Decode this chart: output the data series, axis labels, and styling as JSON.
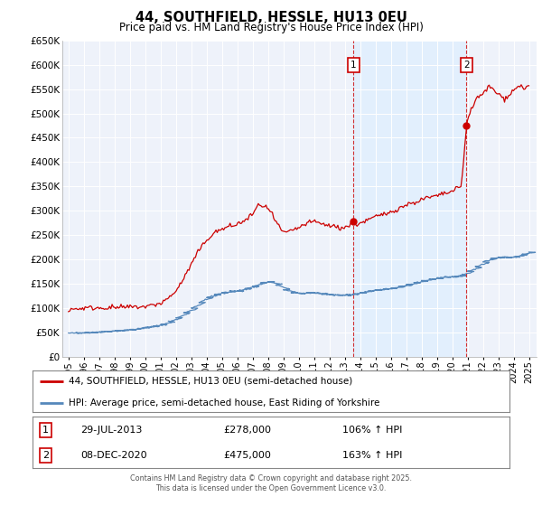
{
  "title": "44, SOUTHFIELD, HESSLE, HU13 0EU",
  "subtitle": "Price paid vs. HM Land Registry's House Price Index (HPI)",
  "legend_label_red": "44, SOUTHFIELD, HESSLE, HU13 0EU (semi-detached house)",
  "legend_label_blue": "HPI: Average price, semi-detached house, East Riding of Yorkshire",
  "annotation_footer": "Contains HM Land Registry data © Crown copyright and database right 2025.\nThis data is licensed under the Open Government Licence v3.0.",
  "sale1_date": "29-JUL-2013",
  "sale1_price": 278000,
  "sale1_hpi": "106% ↑ HPI",
  "sale2_date": "08-DEC-2020",
  "sale2_price": 475000,
  "sale2_hpi": "163% ↑ HPI",
  "red_color": "#cc0000",
  "blue_color": "#5588bb",
  "vline_color": "#cc0000",
  "shade_color": "#ddeeff",
  "background_color": "#eef2fa",
  "ylim": [
    0,
    650000
  ],
  "yticks": [
    0,
    50000,
    100000,
    150000,
    200000,
    250000,
    300000,
    350000,
    400000,
    450000,
    500000,
    550000,
    600000,
    650000
  ],
  "sale1_x": 2013.57,
  "sale2_x": 2020.93
}
